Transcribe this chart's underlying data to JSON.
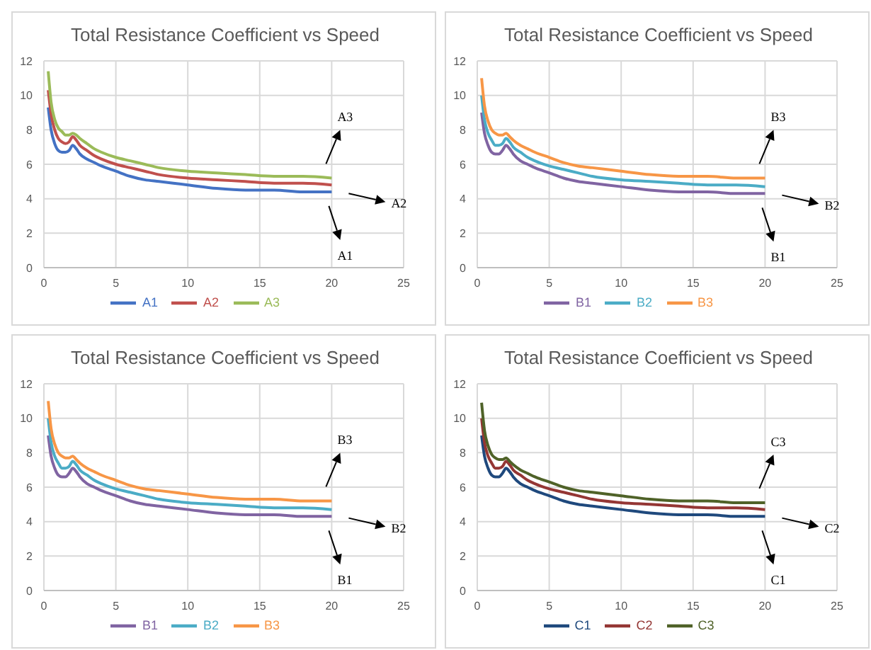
{
  "chart_data": [
    {
      "type": "line",
      "title": "Total Resistance Coefficient vs Speed",
      "x": [
        0.3,
        0.5,
        0.75,
        1,
        1.25,
        1.5,
        1.75,
        2,
        2.25,
        2.5,
        3,
        3.5,
        4,
        5,
        6,
        7,
        8,
        10,
        12,
        14,
        16,
        18,
        20
      ],
      "xlim": [
        0,
        25
      ],
      "xticks": [
        0,
        5,
        10,
        15,
        20,
        25
      ],
      "ylim": [
        0,
        12
      ],
      "yticks": [
        0,
        2,
        4,
        6,
        8,
        10,
        12
      ],
      "grid": true,
      "legend": "bottom",
      "marker": "none",
      "line_style": "solid",
      "series": [
        {
          "name": "A1",
          "color": "#4472c4",
          "values": [
            9.3,
            8.0,
            7.2,
            6.8,
            6.7,
            6.7,
            6.8,
            7.1,
            6.9,
            6.6,
            6.3,
            6.1,
            5.9,
            5.6,
            5.3,
            5.1,
            5.0,
            4.8,
            4.6,
            4.5,
            4.5,
            4.4,
            4.4
          ]
        },
        {
          "name": "A2",
          "color": "#c0504d",
          "values": [
            10.3,
            8.9,
            8.0,
            7.5,
            7.3,
            7.2,
            7.3,
            7.6,
            7.4,
            7.1,
            6.8,
            6.5,
            6.3,
            6.0,
            5.8,
            5.6,
            5.4,
            5.2,
            5.1,
            5.0,
            4.9,
            4.9,
            4.8
          ]
        },
        {
          "name": "A3",
          "color": "#9bbb59",
          "values": [
            11.4,
            9.6,
            8.6,
            8.1,
            7.9,
            7.7,
            7.7,
            7.8,
            7.7,
            7.5,
            7.2,
            6.9,
            6.7,
            6.4,
            6.2,
            6.0,
            5.8,
            5.6,
            5.5,
            5.4,
            5.3,
            5.3,
            5.2
          ]
        }
      ],
      "annotations": [
        "A3",
        "A2",
        "A1"
      ]
    },
    {
      "type": "line",
      "title": "Total Resistance Coefficient vs Speed",
      "x": [
        0.3,
        0.5,
        0.75,
        1,
        1.25,
        1.5,
        1.75,
        2,
        2.25,
        2.5,
        3,
        3.5,
        4,
        5,
        6,
        7,
        8,
        10,
        12,
        14,
        16,
        18,
        20
      ],
      "xlim": [
        0,
        25
      ],
      "xticks": [
        0,
        5,
        10,
        15,
        20,
        25
      ],
      "ylim": [
        0,
        12
      ],
      "yticks": [
        0,
        2,
        4,
        6,
        8,
        10,
        12
      ],
      "grid": true,
      "legend": "bottom",
      "marker": "none",
      "line_style": "solid",
      "series": [
        {
          "name": "B1",
          "color": "#8064a2",
          "values": [
            9.0,
            7.8,
            7.1,
            6.7,
            6.6,
            6.6,
            6.8,
            7.1,
            6.9,
            6.6,
            6.2,
            6.0,
            5.8,
            5.5,
            5.2,
            5.0,
            4.9,
            4.7,
            4.5,
            4.4,
            4.4,
            4.3,
            4.3
          ]
        },
        {
          "name": "B2",
          "color": "#4bacc6",
          "values": [
            10.0,
            8.6,
            7.8,
            7.4,
            7.1,
            7.1,
            7.2,
            7.5,
            7.3,
            7.0,
            6.7,
            6.4,
            6.2,
            5.9,
            5.7,
            5.5,
            5.3,
            5.1,
            5.0,
            4.9,
            4.8,
            4.8,
            4.7
          ]
        },
        {
          "name": "B3",
          "color": "#f79646",
          "values": [
            11.0,
            9.4,
            8.5,
            8.0,
            7.8,
            7.7,
            7.7,
            7.8,
            7.6,
            7.4,
            7.1,
            6.9,
            6.7,
            6.4,
            6.1,
            5.9,
            5.8,
            5.6,
            5.4,
            5.3,
            5.3,
            5.2,
            5.2
          ]
        }
      ],
      "annotations": [
        "B3",
        "B2",
        "B1"
      ]
    },
    {
      "type": "line",
      "title": "Total Resistance Coefficient vs Speed",
      "x": [
        0.3,
        0.5,
        0.75,
        1,
        1.25,
        1.5,
        1.75,
        2,
        2.25,
        2.5,
        3,
        3.5,
        4,
        5,
        6,
        7,
        8,
        10,
        12,
        14,
        16,
        18,
        20
      ],
      "xlim": [
        0,
        25
      ],
      "xticks": [
        0,
        5,
        10,
        15,
        20,
        25
      ],
      "ylim": [
        0,
        12
      ],
      "yticks": [
        0,
        2,
        4,
        6,
        8,
        10,
        12
      ],
      "grid": true,
      "legend": "bottom",
      "marker": "none",
      "line_style": "solid",
      "series": [
        {
          "name": "B1",
          "color": "#8064a2",
          "values": [
            9.0,
            7.8,
            7.1,
            6.7,
            6.6,
            6.6,
            6.8,
            7.1,
            6.9,
            6.6,
            6.2,
            6.0,
            5.8,
            5.5,
            5.2,
            5.0,
            4.9,
            4.7,
            4.5,
            4.4,
            4.4,
            4.3,
            4.3
          ]
        },
        {
          "name": "B2",
          "color": "#4bacc6",
          "values": [
            10.0,
            8.6,
            7.8,
            7.4,
            7.1,
            7.1,
            7.2,
            7.5,
            7.3,
            7.0,
            6.7,
            6.4,
            6.2,
            5.9,
            5.7,
            5.5,
            5.3,
            5.1,
            5.0,
            4.9,
            4.8,
            4.8,
            4.7
          ]
        },
        {
          "name": "B3",
          "color": "#f79646",
          "values": [
            11.0,
            9.4,
            8.5,
            8.0,
            7.8,
            7.7,
            7.7,
            7.8,
            7.6,
            7.4,
            7.1,
            6.9,
            6.7,
            6.4,
            6.1,
            5.9,
            5.8,
            5.6,
            5.4,
            5.3,
            5.3,
            5.2,
            5.2
          ]
        }
      ],
      "annotations": [
        "B3",
        "B2",
        "B1"
      ]
    },
    {
      "type": "line",
      "title": "Total Resistance Coefficient vs Speed",
      "x": [
        0.3,
        0.5,
        0.75,
        1,
        1.25,
        1.5,
        1.75,
        2,
        2.25,
        2.5,
        3,
        3.5,
        4,
        5,
        6,
        7,
        8,
        10,
        12,
        14,
        16,
        18,
        20
      ],
      "xlim": [
        0,
        25
      ],
      "xticks": [
        0,
        5,
        10,
        15,
        20,
        25
      ],
      "ylim": [
        0,
        12
      ],
      "yticks": [
        0,
        2,
        4,
        6,
        8,
        10,
        12
      ],
      "grid": true,
      "legend": "bottom",
      "marker": "none",
      "line_style": "solid",
      "series": [
        {
          "name": "C1",
          "color": "#1f497d",
          "values": [
            9.0,
            7.8,
            7.1,
            6.7,
            6.6,
            6.6,
            6.8,
            7.1,
            6.9,
            6.6,
            6.2,
            6.0,
            5.8,
            5.5,
            5.2,
            5.0,
            4.9,
            4.7,
            4.5,
            4.4,
            4.4,
            4.3,
            4.3
          ]
        },
        {
          "name": "C2",
          "color": "#943634",
          "values": [
            10.0,
            8.6,
            7.8,
            7.4,
            7.1,
            7.1,
            7.2,
            7.5,
            7.3,
            7.0,
            6.7,
            6.4,
            6.2,
            5.9,
            5.7,
            5.5,
            5.3,
            5.1,
            5.0,
            4.9,
            4.8,
            4.8,
            4.7
          ]
        },
        {
          "name": "C3",
          "color": "#4f6228",
          "values": [
            10.9,
            9.3,
            8.4,
            7.9,
            7.7,
            7.6,
            7.6,
            7.7,
            7.5,
            7.3,
            7.0,
            6.8,
            6.6,
            6.3,
            6.0,
            5.8,
            5.7,
            5.5,
            5.3,
            5.2,
            5.2,
            5.1,
            5.1
          ]
        }
      ],
      "annotations": [
        "C3",
        "C2",
        "C1"
      ]
    }
  ]
}
